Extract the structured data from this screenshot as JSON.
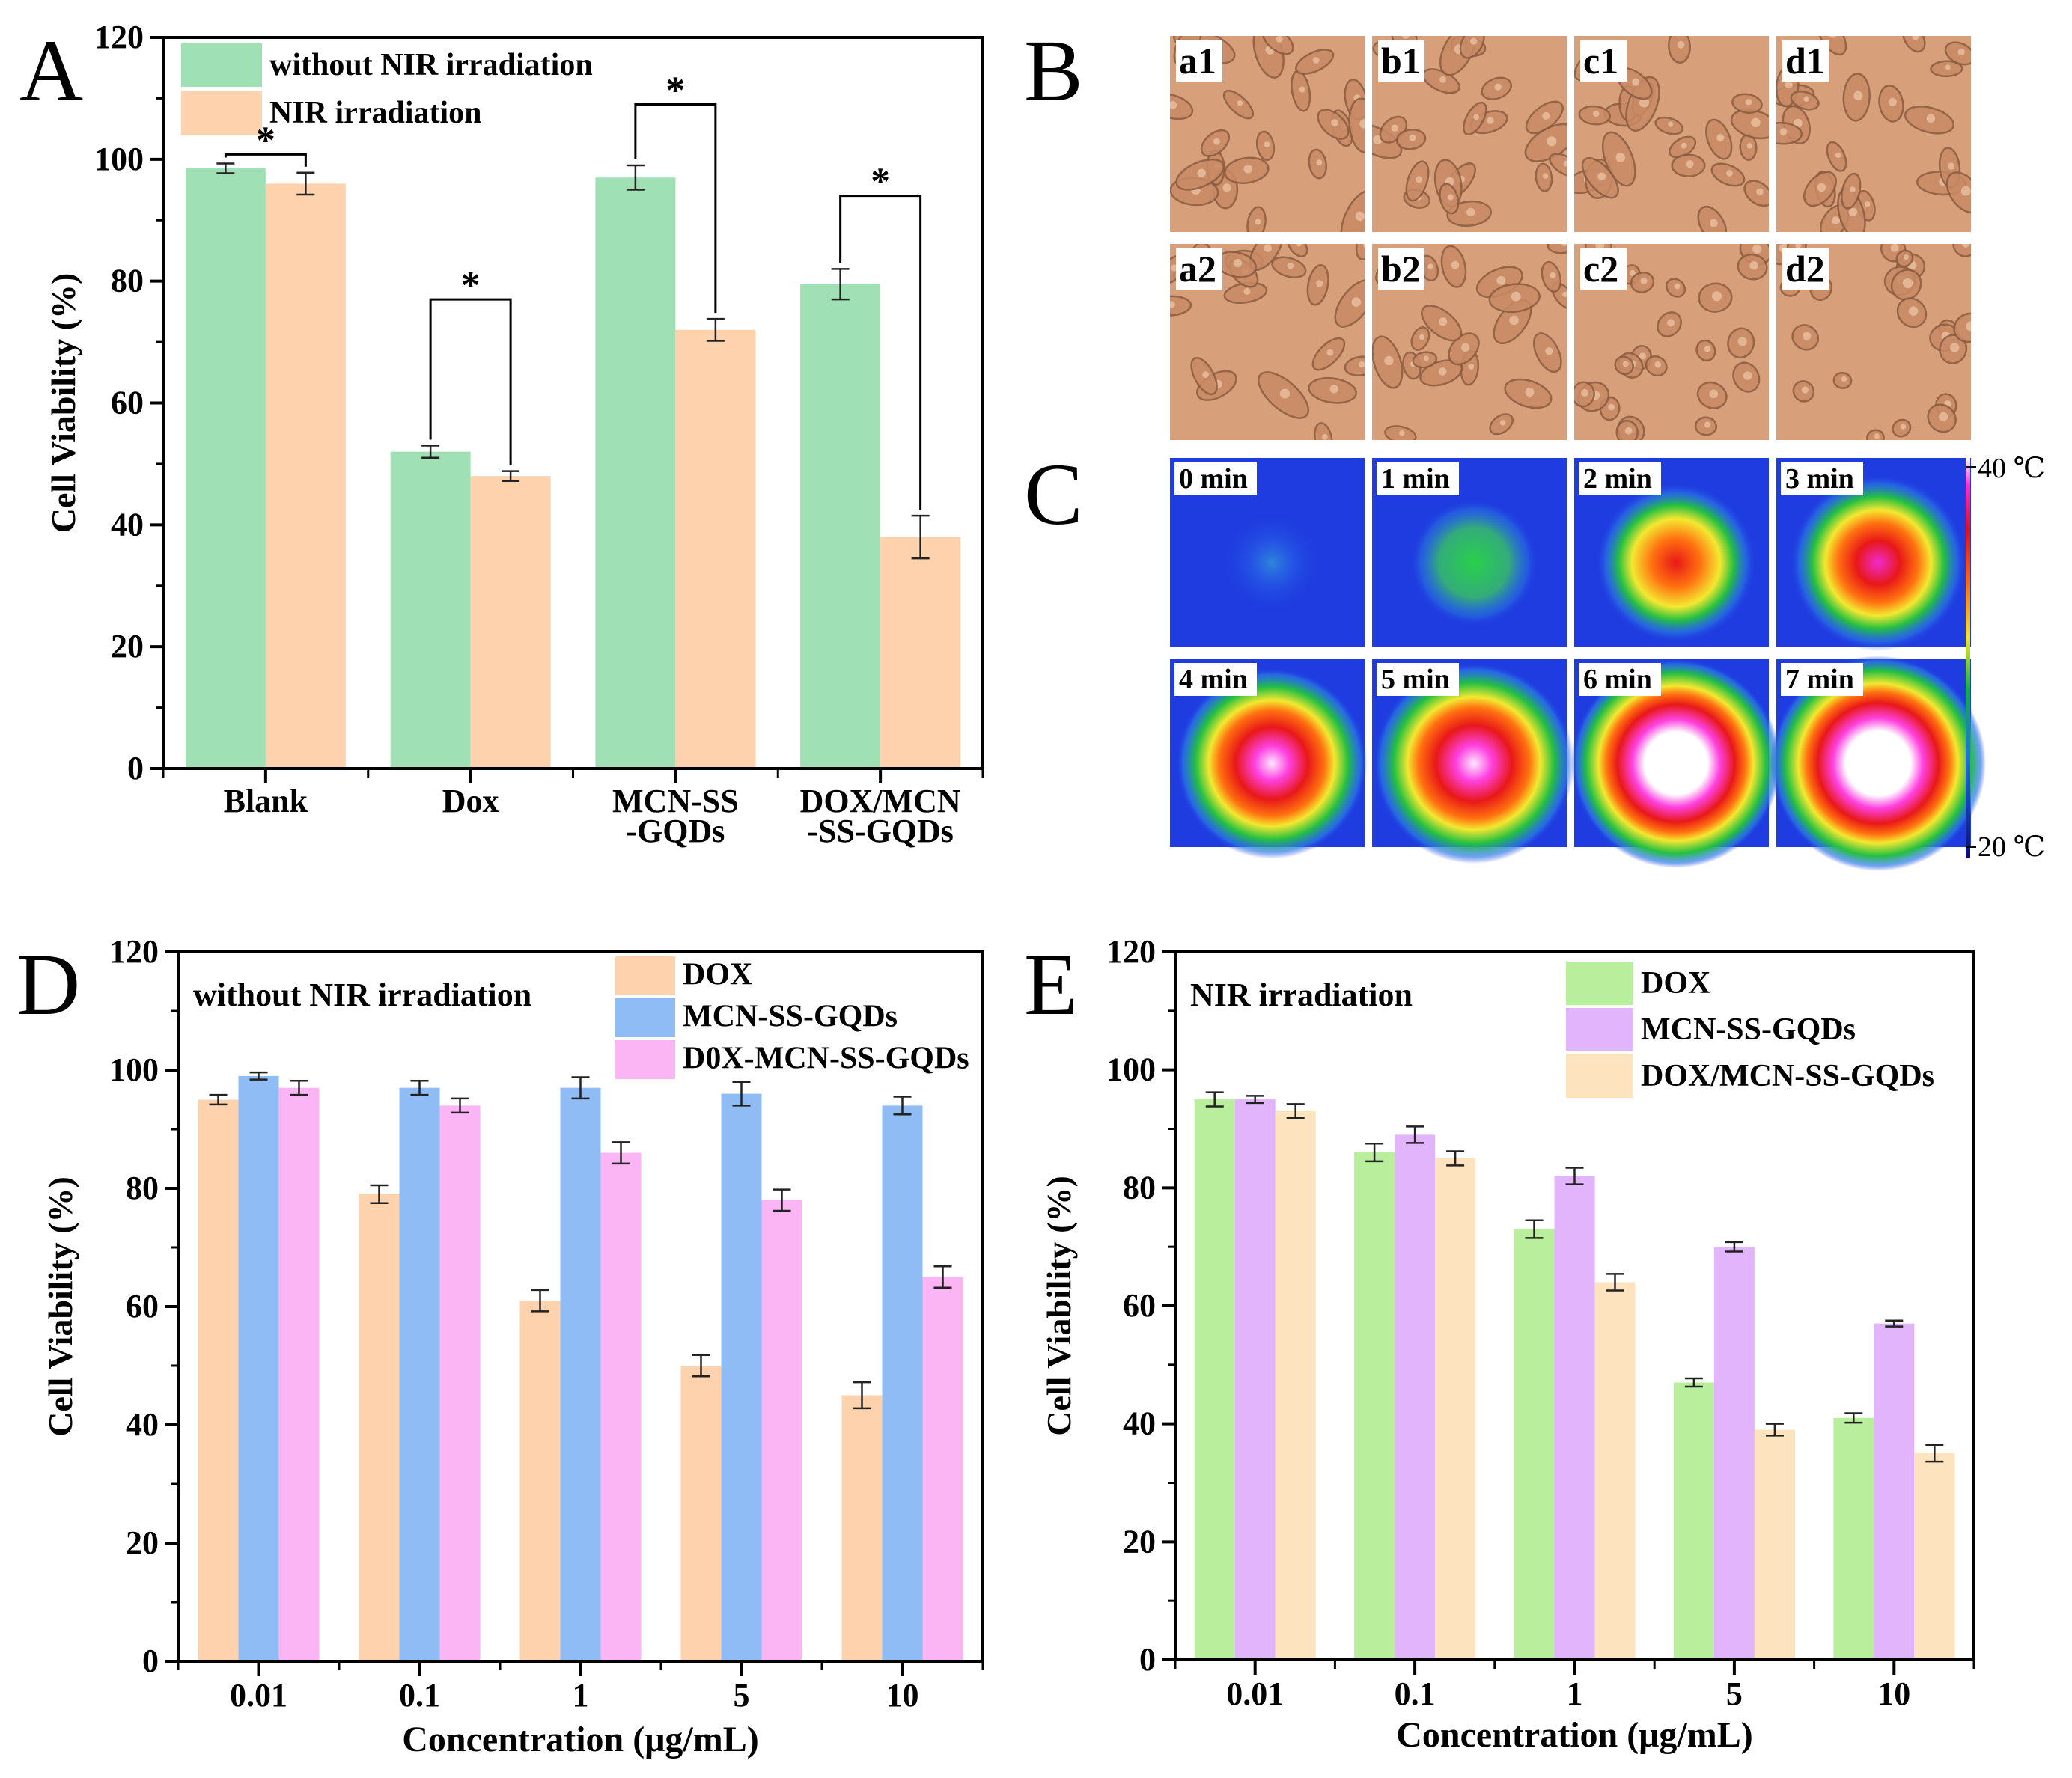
{
  "panel_labels": {
    "A": "A",
    "B": "B",
    "C": "C",
    "D": "D",
    "E": "E"
  },
  "colors": {
    "green": "#9fe0b4",
    "peach": "#fdd2ac",
    "blue": "#8fbcf4",
    "pink": "#fbb4f4",
    "lightgreen": "#b9ef9c",
    "lavender": "#e1b4fb",
    "cream": "#fde4bf",
    "cell_bg": "#d8a07a",
    "thermal_bg": "#1f3ce0"
  },
  "chart_data": [
    {
      "id": "A",
      "type": "bar",
      "title": "",
      "xlabel": "",
      "ylabel": "Cell Viability (%)",
      "ylim": [
        0,
        120
      ],
      "yticks": [
        0,
        20,
        40,
        60,
        80,
        100,
        120
      ],
      "categories": [
        "Blank",
        "Dox",
        "MCN-SS\n-GQDs",
        "DOX/MCN\n-SS-GQDs"
      ],
      "series": [
        {
          "name": "without NIR irradiation",
          "color": "#9fe0b4",
          "values": [
            98.5,
            52,
            97,
            79.5
          ],
          "errors": [
            0.8,
            1,
            2,
            2.5
          ]
        },
        {
          "name": "NIR irradiation",
          "color": "#fdd2ac",
          "values": [
            96,
            48,
            72,
            38
          ],
          "errors": [
            1.8,
            0.8,
            1.8,
            3.5
          ]
        }
      ],
      "significance": [
        "*",
        "*",
        "*",
        "*"
      ],
      "legend": "top-left"
    },
    {
      "id": "D",
      "type": "bar",
      "title": "without NIR irradiation",
      "xlabel": "Concentration (μg/mL)",
      "ylabel": "Cell Viability (%)",
      "ylim": [
        0,
        120
      ],
      "yticks": [
        0,
        20,
        40,
        60,
        80,
        100,
        120
      ],
      "categories": [
        "0.01",
        "0.1",
        "1",
        "5",
        "10"
      ],
      "series": [
        {
          "name": "DOX",
          "color": "#fdd2ac",
          "values": [
            95,
            79,
            61,
            50,
            45
          ],
          "errors": [
            0.8,
            1.5,
            1.8,
            1.8,
            2.2
          ]
        },
        {
          "name": "MCN-SS-GQDs",
          "color": "#8fbcf4",
          "values": [
            99,
            97,
            97,
            96,
            94
          ],
          "errors": [
            0.6,
            1.2,
            1.8,
            2,
            1.5
          ]
        },
        {
          "name": "D0X-MCN-SS-GQDs",
          "color": "#fbb4f4",
          "values": [
            97,
            94,
            86,
            78,
            65
          ],
          "errors": [
            1.2,
            1.2,
            1.8,
            1.8,
            1.8
          ]
        }
      ],
      "legend": "top-right"
    },
    {
      "id": "E",
      "type": "bar",
      "title": "NIR irradiation",
      "xlabel": "Concentration (μg/mL)",
      "ylabel": "Cell Viability (%)",
      "ylim": [
        0,
        120
      ],
      "yticks": [
        0,
        20,
        40,
        60,
        80,
        100,
        120
      ],
      "categories": [
        "0.01",
        "0.1",
        "1",
        "5",
        "10"
      ],
      "series": [
        {
          "name": "DOX",
          "color": "#b9ef9c",
          "values": [
            95,
            86,
            73,
            47,
            41
          ],
          "errors": [
            1.2,
            1.5,
            1.5,
            0.7,
            0.8
          ]
        },
        {
          "name": "MCN-SS-GQDs",
          "color": "#e1b4fb",
          "values": [
            95,
            89,
            82,
            70,
            57
          ],
          "errors": [
            0.6,
            1.4,
            1.4,
            0.8,
            0.5
          ]
        },
        {
          "name": "DOX/MCN-SS-GQDs",
          "color": "#fde4bf",
          "values": [
            93,
            85,
            64,
            39,
            35
          ],
          "errors": [
            1.2,
            1.2,
            1.4,
            1,
            1.4
          ]
        }
      ],
      "legend": "top-right"
    }
  ],
  "panel_B": {
    "images": [
      {
        "label": "a1",
        "rounded": 0.1
      },
      {
        "label": "b1",
        "rounded": 0.2
      },
      {
        "label": "c1",
        "rounded": 0.25
      },
      {
        "label": "d1",
        "rounded": 0.2
      },
      {
        "label": "a2",
        "rounded": 0.15
      },
      {
        "label": "b2",
        "rounded": 0.3
      },
      {
        "label": "c2",
        "rounded": 0.85
      },
      {
        "label": "d2",
        "rounded": 0.9
      }
    ]
  },
  "panel_C": {
    "frames": [
      {
        "label": "0 min",
        "heat": 0.08
      },
      {
        "label": "1 min",
        "heat": 0.28
      },
      {
        "label": "2 min",
        "heat": 0.55
      },
      {
        "label": "3 min",
        "heat": 0.68
      },
      {
        "label": "4 min",
        "heat": 0.8
      },
      {
        "label": "5 min",
        "heat": 0.88
      },
      {
        "label": "6 min",
        "heat": 0.95
      },
      {
        "label": "7 min",
        "heat": 1.0
      }
    ],
    "scale_max": "40 ℃",
    "scale_min": "20 ℃"
  }
}
